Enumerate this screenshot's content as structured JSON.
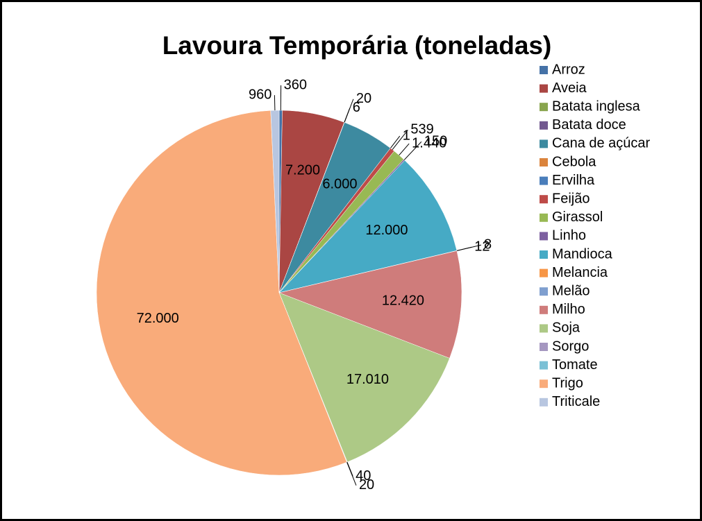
{
  "chart_data": {
    "type": "pie",
    "title": "Lavoura Temporária (toneladas)",
    "categories": [
      "Arroz",
      "Aveia",
      "Batata inglesa",
      "Batata doce",
      "Cana de açúcar",
      "Cebola",
      "Ervilha",
      "Feijão",
      "Girassol",
      "Linho",
      "Mandioca",
      "Melancia",
      "Melão",
      "Milho",
      "Soja",
      "Sorgo",
      "Tomate",
      "Trigo",
      "Triticale"
    ],
    "values": [
      360,
      7200,
      6,
      20,
      6000,
      null,
      1,
      539,
      1440,
      150,
      12000,
      12,
      8,
      12420,
      17010,
      40,
      20,
      72000,
      960
    ],
    "value_labels": [
      "360",
      "7.200",
      "6",
      "20",
      "6.000",
      null,
      "1",
      "539",
      "1.440",
      "150",
      "12.000",
      "12",
      "8",
      "12.420",
      "17.010",
      "40",
      "20",
      "72.000",
      "960"
    ],
    "colors": [
      "#4572A7",
      "#AA4643",
      "#89A54E",
      "#71588F",
      "#3D8AA0",
      "#DB843D",
      "#4A7EBB",
      "#BE4B48",
      "#98B954",
      "#7D60A0",
      "#46AAC5",
      "#F79646",
      "#7F9FCF",
      "#CF7C7B",
      "#ADC986",
      "#A597C0",
      "#7BC0D5",
      "#F9AB7A",
      "#B8C6E0"
    ],
    "legend": "right"
  }
}
